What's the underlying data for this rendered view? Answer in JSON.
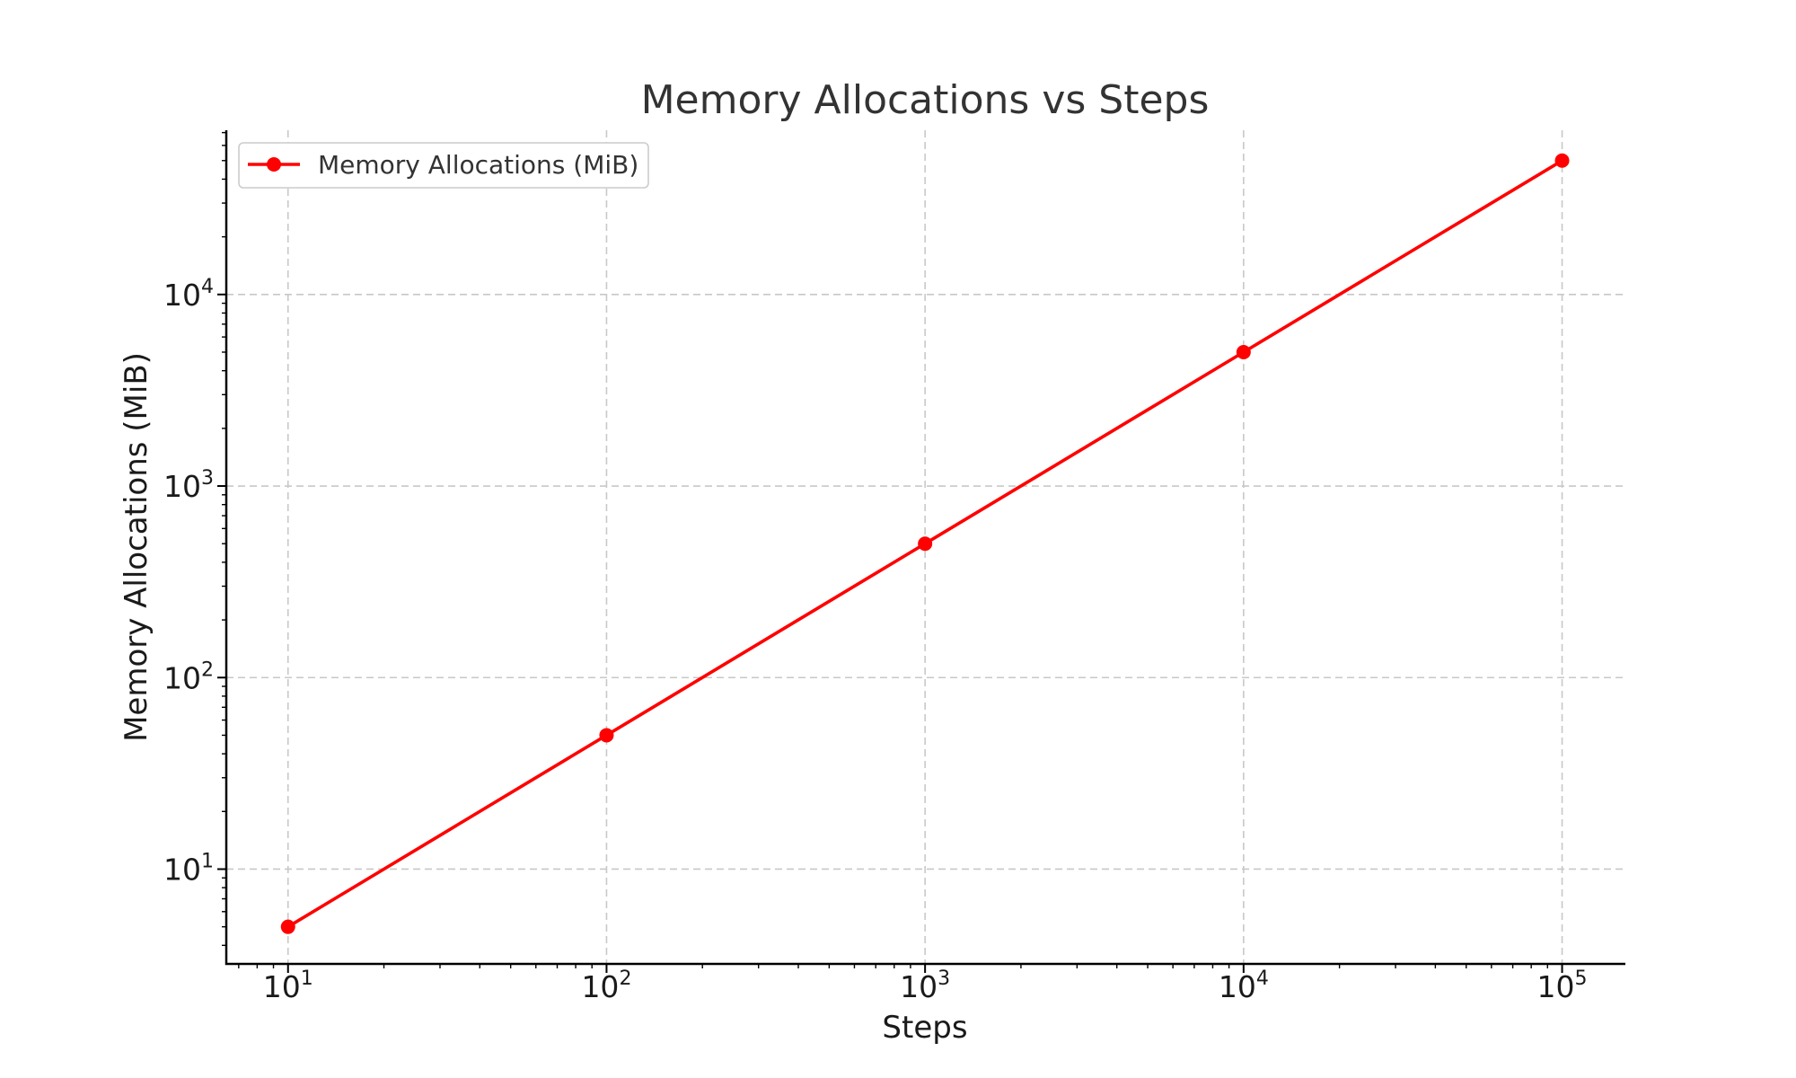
{
  "chart_data": {
    "type": "line",
    "title": "Memory Allocations vs Steps",
    "xlabel": "Steps",
    "ylabel": "Memory Allocations (MiB)",
    "xscale": "log",
    "yscale": "log",
    "xlim": [
      6.4,
      158000
    ],
    "ylim": [
      3.2,
      72000
    ],
    "grid": true,
    "legend_position": "top-left",
    "x_ticks": [
      {
        "base": "10",
        "exp": "1",
        "value": 10
      },
      {
        "base": "10",
        "exp": "2",
        "value": 100
      },
      {
        "base": "10",
        "exp": "3",
        "value": 1000
      },
      {
        "base": "10",
        "exp": "4",
        "value": 10000
      },
      {
        "base": "10",
        "exp": "5",
        "value": 100000
      }
    ],
    "y_ticks": [
      {
        "base": "10",
        "exp": "1",
        "value": 10
      },
      {
        "base": "10",
        "exp": "2",
        "value": 100
      },
      {
        "base": "10",
        "exp": "3",
        "value": 1000
      },
      {
        "base": "10",
        "exp": "4",
        "value": 10000
      }
    ],
    "series": [
      {
        "name": "Memory Allocations (MiB)",
        "color": "#ff0000",
        "marker": "circle",
        "x": [
          10,
          100,
          1000,
          10000,
          100000
        ],
        "y": [
          5,
          50,
          500,
          5000,
          50000
        ]
      }
    ]
  }
}
